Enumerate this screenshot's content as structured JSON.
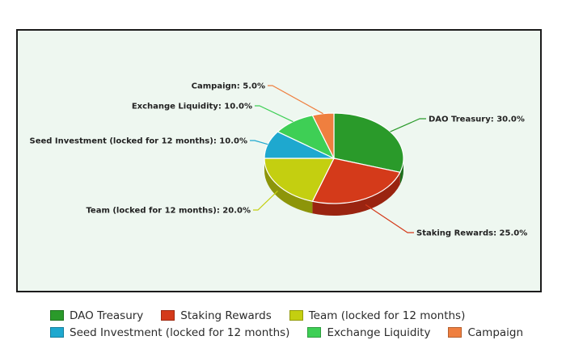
{
  "chart_data": {
    "type": "pie",
    "title": "",
    "slices": [
      {
        "label": "DAO Treasury",
        "value": 30.0,
        "display": "DAO Treasury: 30.0%",
        "color": "#2a9a2a",
        "side_color": "#1c6f1c"
      },
      {
        "label": "Staking Rewards",
        "value": 25.0,
        "display": "Staking Rewards: 25.0%",
        "color": "#d43a1a",
        "side_color": "#9a2410"
      },
      {
        "label": "Team (locked for 12 months)",
        "value": 20.0,
        "display": "Team (locked for 12 months): 20.0%",
        "color": "#c4cf10",
        "side_color": "#8d950a"
      },
      {
        "label": "Seed Investment (locked for 12 months)",
        "value": 10.0,
        "display": "Seed Investment (locked for 12 months): 10.0%",
        "color": "#1ea8cf",
        "side_color": "#13799a"
      },
      {
        "label": "Exchange Liquidity",
        "value": 10.0,
        "display": "Exchange Liquidity: 10.0%",
        "color": "#3ecf55",
        "side_color": "#27973a"
      },
      {
        "label": "Campaign",
        "value": 5.0,
        "display": "Campaign: 5.0%",
        "color": "#ef7f3f",
        "side_color": "#b15c27"
      }
    ],
    "legend": {
      "placement": "bottom",
      "rows": [
        [
          "DAO Treasury",
          "Staking Rewards",
          "Team (locked for 12 months)"
        ],
        [
          "Seed Investment (locked for 12 months)",
          "Exchange Liquidity",
          "Campaign"
        ]
      ]
    }
  }
}
